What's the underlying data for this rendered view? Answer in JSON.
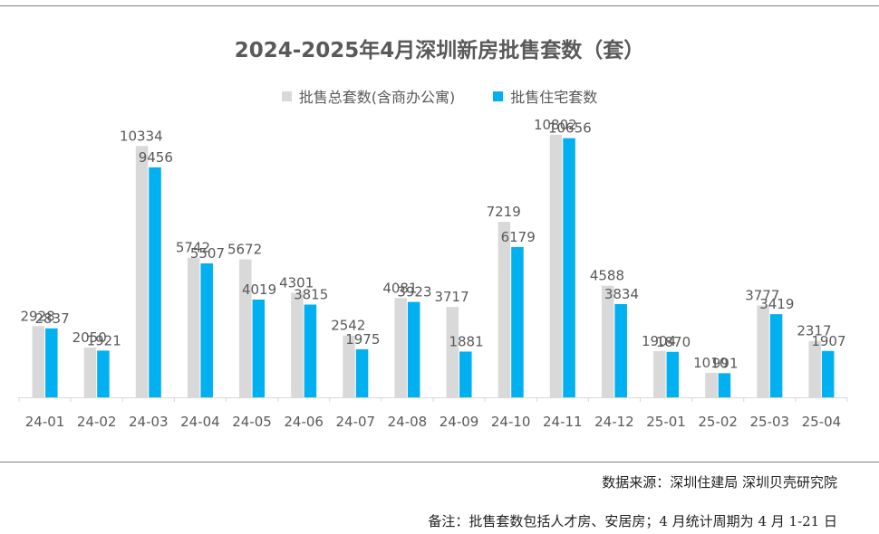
{
  "chart_data": {
    "type": "bar",
    "title": "2024-2025年4月深圳新房批售套数（套）",
    "categories": [
      "24-01",
      "24-02",
      "24-03",
      "24-04",
      "24-05",
      "24-06",
      "24-07",
      "24-08",
      "24-09",
      "24-10",
      "24-11",
      "24-12",
      "25-01",
      "25-02",
      "25-03",
      "25-04"
    ],
    "series": [
      {
        "name": "批售总套数(含商办公寓)",
        "color": "#d9d9d9",
        "values": [
          2928,
          2050,
          10334,
          5742,
          5672,
          4301,
          2542,
          4081,
          3717,
          7219,
          10802,
          4588,
          1904,
          1010,
          3777,
          2317
        ]
      },
      {
        "name": "批售住宅套数",
        "color": "#00b0f0",
        "values": [
          2837,
          1921,
          9456,
          5507,
          4019,
          3815,
          1975,
          3923,
          1881,
          6179,
          10656,
          3834,
          1870,
          991,
          3419,
          1907
        ]
      }
    ],
    "ylim": [
      0,
      11500
    ],
    "grid": false,
    "legend_position": "top"
  },
  "footer": {
    "source": "数据来源：深圳住建局  深圳贝壳研究院",
    "remark": "备注：批售套数包括人才房、安居房；4 月统计周期为 4 月 1-21 日"
  }
}
